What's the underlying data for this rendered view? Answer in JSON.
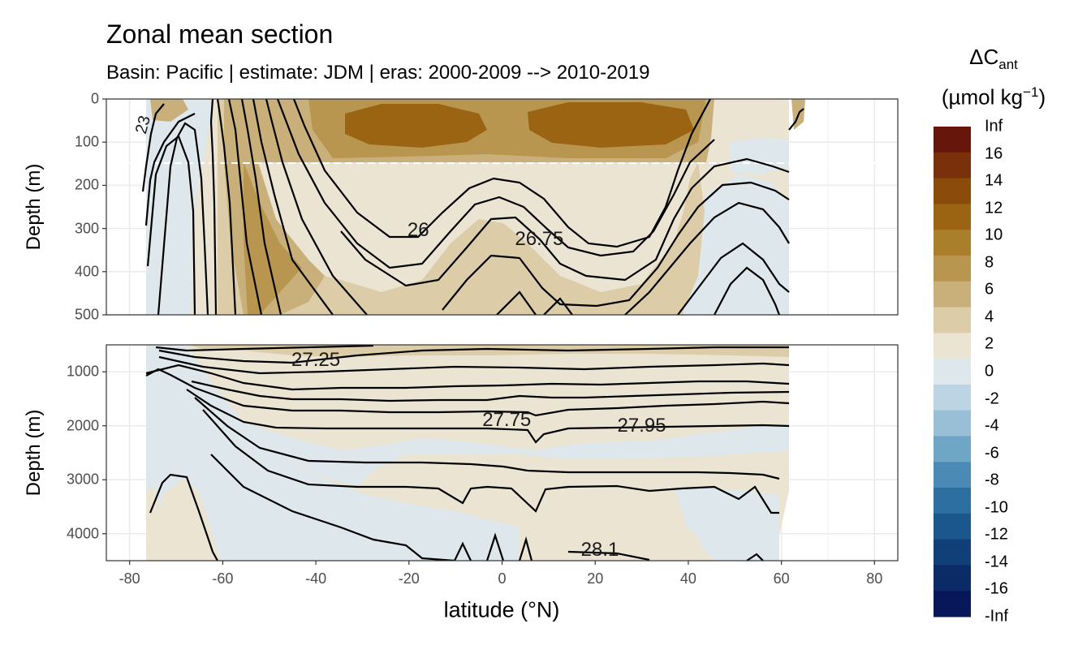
{
  "header": {
    "title": "Zonal mean section",
    "subtitle": "Basin: Pacific | estimate: JDM  | eras: 2000-2009 --> 2010-2019"
  },
  "axes": {
    "y_title_top": "Depth (m)",
    "y_title_bottom": "Depth (m)",
    "x_title": "latitude (°N)",
    "top_y_ticks": [
      "0",
      "100",
      "200",
      "300",
      "400",
      "500"
    ],
    "bottom_y_ticks": [
      "1000",
      "2000",
      "3000",
      "4000"
    ],
    "x_ticks": [
      "-80",
      "-60",
      "-40",
      "-20",
      "0",
      "20",
      "40",
      "60",
      "80"
    ]
  },
  "legend": {
    "title_main": "ΔC",
    "title_sub": "ant",
    "unit_main": "(µmol kg",
    "unit_sup": "−1",
    "unit_end": ")",
    "labels": [
      "Inf",
      "16",
      "14",
      "12",
      "10",
      "8",
      "6",
      "4",
      "2",
      "0",
      "-2",
      "-4",
      "-6",
      "-8",
      "-10",
      "-12",
      "-14",
      "-16",
      "-Inf"
    ],
    "colors": [
      "#67160c",
      "#7a300a",
      "#8b4b0b",
      "#9a6412",
      "#aa7f2b",
      "#b99650",
      "#c9b07a",
      "#dccca7",
      "#ebe4d3",
      "#dde7ec",
      "#bcd4e4",
      "#98bfd6",
      "#6fa6c6",
      "#4b8ab4",
      "#2d6fa0",
      "#1b578c",
      "#113f77",
      "#0b2b66",
      "#08175a"
    ]
  },
  "contour_labels": [
    "26",
    "26.75",
    "27.25",
    "27.75",
    "27.95",
    "28.1",
    "23"
  ],
  "chart_data": {
    "type": "heatmap",
    "title": "Zonal mean section",
    "subtitle": "Basin: Pacific | estimate: JDM  | eras: 2000-2009 --> 2010-2019",
    "xlabel": "latitude (°N)",
    "ylabel": "Depth (m)",
    "xlim": [
      -85,
      85
    ],
    "panels": [
      {
        "name": "upper",
        "ylim": [
          0,
          500
        ],
        "y_ticks": [
          0,
          100,
          200,
          300,
          400,
          500
        ]
      },
      {
        "name": "lower",
        "ylim": [
          500,
          4500
        ],
        "y_ticks": [
          1000,
          2000,
          3000,
          4000
        ]
      }
    ],
    "x_ticks": [
      -80,
      -60,
      -40,
      -20,
      0,
      20,
      40,
      60,
      80
    ],
    "legend_title": "ΔCant (µmol kg−1)",
    "color_breaks": [
      "-Inf",
      -16,
      -14,
      -12,
      -10,
      -8,
      -6,
      -4,
      -2,
      0,
      2,
      4,
      6,
      8,
      10,
      12,
      14,
      16,
      "Inf"
    ],
    "reference_depth_line": 150,
    "contour_levels_labeled": [
      {
        "label": "26",
        "lat": -18,
        "depth": 305
      },
      {
        "label": "26.75",
        "lat": 8,
        "depth": 325
      },
      {
        "label": "27.25",
        "lat": -40,
        "depth": 780
      },
      {
        "label": "27.75",
        "lat": 1,
        "depth": 1900
      },
      {
        "label": "27.95",
        "lat": 30,
        "depth": 2000
      },
      {
        "label": "28.1",
        "lat": 21,
        "depth": 4300
      },
      {
        "label": "23",
        "lat": -77,
        "depth": 60
      }
    ],
    "grid": true,
    "legend_position": "right"
  }
}
